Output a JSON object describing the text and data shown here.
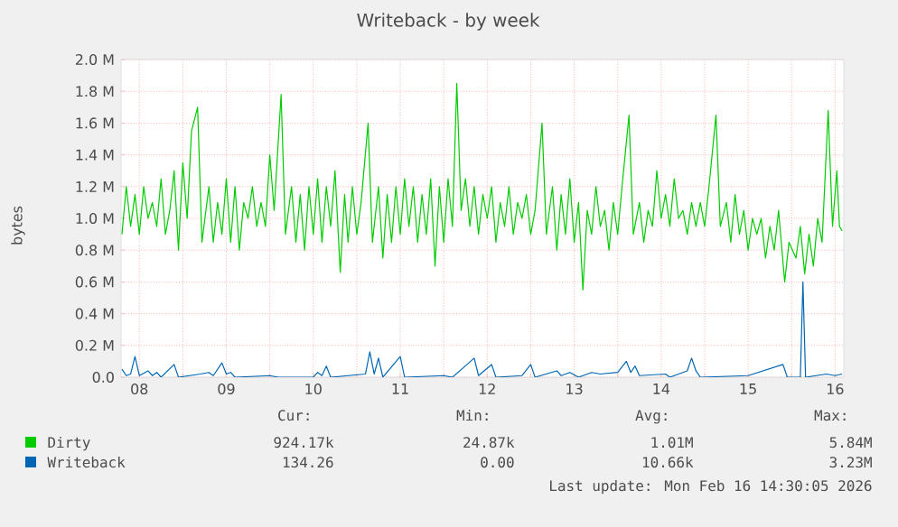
{
  "chart_data": {
    "type": "line",
    "title": "Writeback - by week",
    "ylabel": "bytes",
    "xlim": [
      7.79,
      16.1
    ],
    "xticks": [
      {
        "value": 8,
        "label": "08"
      },
      {
        "value": 8.5,
        "label": null
      },
      {
        "value": 9,
        "label": "09"
      },
      {
        "value": 9.5,
        "label": null
      },
      {
        "value": 10,
        "label": "10"
      },
      {
        "value": 10.5,
        "label": null
      },
      {
        "value": 11,
        "label": "11"
      },
      {
        "value": 11.5,
        "label": null
      },
      {
        "value": 12,
        "label": "12"
      },
      {
        "value": 12.5,
        "label": null
      },
      {
        "value": 13,
        "label": "13"
      },
      {
        "value": 13.5,
        "label": null
      },
      {
        "value": 14,
        "label": "14"
      },
      {
        "value": 14.5,
        "label": null
      },
      {
        "value": 15,
        "label": "15"
      },
      {
        "value": 15.5,
        "label": null
      },
      {
        "value": 16,
        "label": "16"
      }
    ],
    "ylim": [
      0,
      2000000
    ],
    "yticks": [
      {
        "value": 0,
        "label": "0.0"
      },
      {
        "value": 200000,
        "label": "0.2 M"
      },
      {
        "value": 400000,
        "label": "0.4 M"
      },
      {
        "value": 600000,
        "label": "0.6 M"
      },
      {
        "value": 800000,
        "label": "0.8 M"
      },
      {
        "value": 1000000,
        "label": "1.0 M"
      },
      {
        "value": 1200000,
        "label": "1.2 M"
      },
      {
        "value": 1400000,
        "label": "1.4 M"
      },
      {
        "value": 1600000,
        "label": "1.6 M"
      },
      {
        "value": 1800000,
        "label": "1.8 M"
      },
      {
        "value": 2000000,
        "label": "2.0 M"
      }
    ],
    "grid": true,
    "legend": "bottom",
    "series": [
      {
        "name": "Dirty",
        "color": "#00cc00",
        "x": [
          7.8,
          7.85,
          7.9,
          7.95,
          8.0,
          8.05,
          8.1,
          8.15,
          8.2,
          8.25,
          8.3,
          8.35,
          8.4,
          8.45,
          8.5,
          8.55,
          8.6,
          8.67,
          8.72,
          8.8,
          8.85,
          8.9,
          8.95,
          9.0,
          9.05,
          9.1,
          9.15,
          9.2,
          9.25,
          9.3,
          9.35,
          9.4,
          9.45,
          9.5,
          9.55,
          9.63,
          9.68,
          9.75,
          9.8,
          9.85,
          9.9,
          9.95,
          10.0,
          10.05,
          10.1,
          10.15,
          10.2,
          10.25,
          10.31,
          10.36,
          10.4,
          10.45,
          10.5,
          10.55,
          10.63,
          10.68,
          10.75,
          10.8,
          10.85,
          10.9,
          10.95,
          11.0,
          11.05,
          11.1,
          11.15,
          11.2,
          11.25,
          11.3,
          11.35,
          11.4,
          11.45,
          11.5,
          11.55,
          11.6,
          11.65,
          11.7,
          11.75,
          11.8,
          11.85,
          11.9,
          11.95,
          12.0,
          12.05,
          12.1,
          12.15,
          12.2,
          12.25,
          12.3,
          12.35,
          12.4,
          12.45,
          12.5,
          12.55,
          12.63,
          12.68,
          12.75,
          12.8,
          12.85,
          12.9,
          12.95,
          13.0,
          13.05,
          13.1,
          13.15,
          13.2,
          13.25,
          13.3,
          13.35,
          13.4,
          13.45,
          13.5,
          13.55,
          13.63,
          13.68,
          13.75,
          13.8,
          13.85,
          13.9,
          13.95,
          14.0,
          14.05,
          14.1,
          14.15,
          14.2,
          14.25,
          14.3,
          14.35,
          14.4,
          14.45,
          14.5,
          14.55,
          14.63,
          14.68,
          14.75,
          14.8,
          14.85,
          14.9,
          14.95,
          15.0,
          15.05,
          15.1,
          15.15,
          15.2,
          15.25,
          15.3,
          15.35,
          15.42,
          15.47,
          15.55,
          15.6,
          15.65,
          15.7,
          15.75,
          15.8,
          15.85,
          15.92,
          15.97,
          16.02,
          16.05,
          16.08
        ],
        "values": [
          900000.0,
          1200000.0,
          950000.0,
          1150000.0,
          900000.0,
          1200000.0,
          1000000.0,
          1100000.0,
          950000.0,
          1250000.0,
          900000.0,
          1050000.0,
          1300000.0,
          800000.0,
          1350000.0,
          1000000.0,
          1550000.0,
          1700000.0,
          850000.0,
          1200000.0,
          850000.0,
          1100000.0,
          900000.0,
          1250000.0,
          850000.0,
          1200000.0,
          800000.0,
          1100000.0,
          1000000.0,
          1200000.0,
          950000.0,
          1100000.0,
          950000.0,
          1400000.0,
          1050000.0,
          1780000.0,
          900000.0,
          1200000.0,
          850000.0,
          1150000.0,
          800000.0,
          1200000.0,
          900000.0,
          1250000.0,
          850000.0,
          1200000.0,
          950000.0,
          1300000.0,
          660000.0,
          1150000.0,
          850000.0,
          1200000.0,
          900000.0,
          1100000.0,
          1600000.0,
          850000.0,
          1200000.0,
          750000.0,
          1150000.0,
          850000.0,
          1200000.0,
          900000.0,
          1250000.0,
          950000.0,
          1200000.0,
          850000.0,
          1150000.0,
          900000.0,
          1250000.0,
          700000.0,
          1200000.0,
          850000.0,
          1250000.0,
          950000.0,
          1850000.0,
          1050000.0,
          1250000.0,
          950000.0,
          1200000.0,
          900000.0,
          1150000.0,
          1000000.0,
          1200000.0,
          850000.0,
          1100000.0,
          950000.0,
          1200000.0,
          900000.0,
          1100000.0,
          1000000.0,
          1150000.0,
          900000.0,
          1050000.0,
          1600000.0,
          900000.0,
          1200000.0,
          800000.0,
          1150000.0,
          900000.0,
          1250000.0,
          850000.0,
          1100000.0,
          550000.0,
          1050000.0,
          900000.0,
          1200000.0,
          950000.0,
          1050000.0,
          800000.0,
          1100000.0,
          900000.0,
          1200000.0,
          1650000.0,
          900000.0,
          1100000.0,
          850000.0,
          1050000.0,
          950000.0,
          1300000.0,
          1000000.0,
          1150000.0,
          950000.0,
          1250000.0,
          1000000.0,
          1050000.0,
          900000.0,
          1100000.0,
          950000.0,
          1100000.0,
          950000.0,
          1200000.0,
          1650000.0,
          950000.0,
          1100000.0,
          850000.0,
          1150000.0,
          900000.0,
          1050000.0,
          800000.0,
          1000000.0,
          900000.0,
          1000000.0,
          750000.0,
          950000.0,
          800000.0,
          1050000.0,
          600000.0,
          850000.0,
          750000.0,
          950000.0,
          650000.0,
          900000.0,
          700000.0,
          1000000.0,
          850000.0,
          1680000.0,
          950000.0,
          1300000.0,
          950000.0,
          920000.0
        ]
      },
      {
        "name": "Writeback",
        "color": "#0066b3",
        "x": [
          7.8,
          7.85,
          7.9,
          7.95,
          8.0,
          8.1,
          8.15,
          8.2,
          8.25,
          8.4,
          8.45,
          8.7,
          8.8,
          8.85,
          8.95,
          9.0,
          9.05,
          9.1,
          9.5,
          9.6,
          10.0,
          10.05,
          10.1,
          10.15,
          10.2,
          10.6,
          10.65,
          10.7,
          10.75,
          10.8,
          11.0,
          11.05,
          11.5,
          11.6,
          11.85,
          11.9,
          12.05,
          12.1,
          12.4,
          12.5,
          12.55,
          12.8,
          12.85,
          12.95,
          13.05,
          13.2,
          13.3,
          13.5,
          13.6,
          13.65,
          13.7,
          13.75,
          14.05,
          14.1,
          14.3,
          14.35,
          14.4,
          14.45,
          15.0,
          15.4,
          15.45,
          15.6,
          15.63,
          15.66,
          15.9,
          16.0,
          16.08
        ],
        "values": [
          50000,
          10000,
          20000,
          130000,
          10000,
          40000,
          10000,
          30000,
          0,
          80000,
          0,
          20000,
          30000,
          10000,
          90000,
          20000,
          30000,
          0,
          10000,
          0,
          0,
          30000,
          10000,
          70000,
          0,
          20000,
          160000,
          20000,
          120000,
          0,
          130000,
          0,
          10000,
          0,
          120000,
          10000,
          80000,
          0,
          10000,
          80000,
          0,
          40000,
          10000,
          30000,
          0,
          30000,
          20000,
          30000,
          100000,
          30000,
          70000,
          10000,
          20000,
          0,
          40000,
          120000,
          40000,
          0,
          10000,
          80000,
          0,
          0,
          600000,
          0,
          20000,
          10000,
          20000
        ]
      }
    ],
    "annotations": [
      "Cur:",
      "Min:",
      "Avg:",
      "Max:",
      "924.17k",
      "24.87k",
      "1.01M",
      "5.84M",
      "134.26",
      "0.00",
      "10.66k",
      "3.23M",
      "Last update: Mon Feb 16 14:30:05 2026"
    ]
  }
}
